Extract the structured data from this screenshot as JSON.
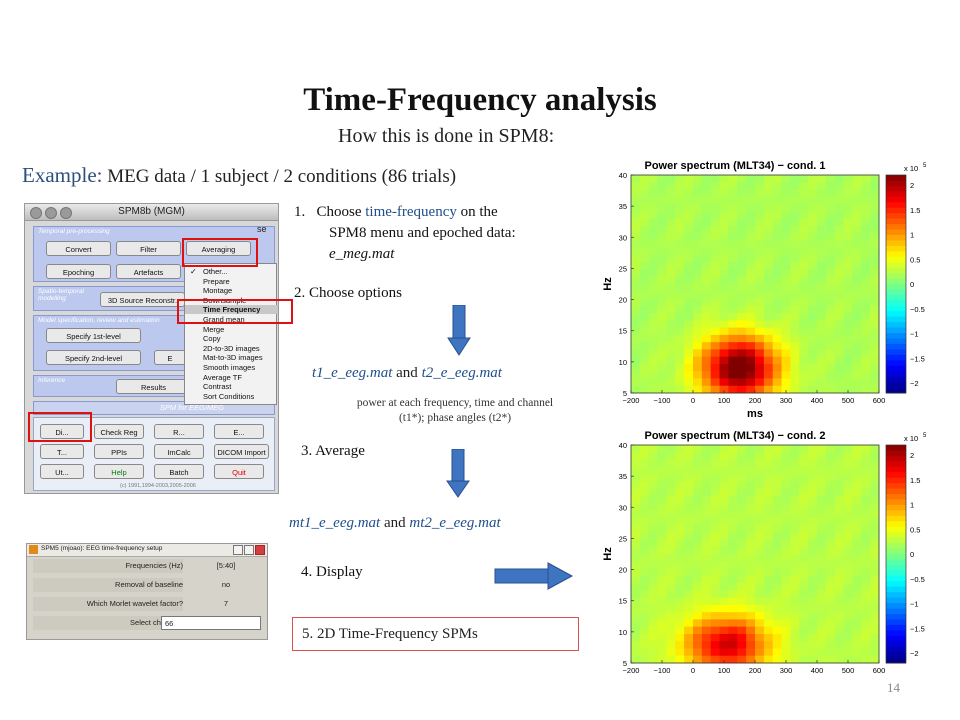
{
  "slide": {
    "title": "Time-Frequency analysis",
    "subtitle": "How this is done in SPM8:",
    "example_label": "Example:",
    "example_text": "MEG data / 1 subject / 2 conditions (86 trials)",
    "page_number": "14"
  },
  "steps": {
    "s1_num": "1.",
    "s1_a": "Choose ",
    "s1_highlight": "time-frequency",
    "s1_b": " on the",
    "s1_line2": "SPM8 menu and epoched data:",
    "s1_file": "e_meg.mat",
    "s2": "2.  Choose options",
    "outputs1_f1": "t1_e_eeg.mat",
    "outputs1_and": " and ",
    "outputs1_f2": "t2_e_eeg.mat",
    "note_line1": "power at each frequency, time and channel",
    "note_line2": "(t1*); phase angles (t2*)",
    "s3": "3.    Average",
    "outputs2_f1": "mt1_e_eeg.mat",
    "outputs2_and": " and ",
    "outputs2_f2": "mt2_e_eeg.mat",
    "s4": "4.    Display",
    "s5": "5. 2D Time-Frequency SPMs"
  },
  "spm_window": {
    "title": "SPM8b (MGM)",
    "panel1_head": "Temporal pre-processing",
    "panel2_head": "Spatio-temporal modelling",
    "panel3_head": "Model specification, review and estimation",
    "panel4_head": "Inference",
    "footer_title": "SPM for EEG/MEG",
    "copyright": "(c) 1991,1994-2003,2005-2006",
    "buttons": {
      "convert": "Convert",
      "filter": "Filter",
      "averaging": "Averaging",
      "epoching": "Epoching",
      "artefacts": "Artefacts",
      "source": "3D Source Reconstr.",
      "spec1": "Specify 1st-level",
      "spec2": "Specify 2nd-level",
      "e_trunc": "E",
      "results": "Results",
      "di": "Di...",
      "checkreg": "Check Reg",
      "r": "R...",
      "e": "E...",
      "t": "T...",
      "ppis": "PPIs",
      "imcalc": "ImCalc",
      "dicom": "DICOM Import",
      "ut": "Ut...",
      "help": "Help",
      "batch": "Batch",
      "quit": "Quit",
      "se_trunc": "se"
    },
    "menu_items": [
      "Other...",
      "Prepare",
      "Montage",
      "Downsample",
      "Time Frequency",
      "Grand mean",
      "Merge",
      "Copy",
      "2D-to-3D images",
      "Mat-to-3D images",
      "Smooth images",
      "Average TF",
      "Contrast",
      "Sort Conditions"
    ],
    "menu_check": "✓",
    "menu_selected": "Time Frequency"
  },
  "tf_dialog": {
    "title": "SPM5 (mjoao): EEG time-frequency setup",
    "rows": [
      {
        "label": "Frequencies (Hz)",
        "value": "[5:40]"
      },
      {
        "label": "Removal of baseline",
        "value": "no"
      },
      {
        "label": "Which Morlet wavelet factor?",
        "value": "7"
      },
      {
        "label": "Select channels",
        "value": "66"
      }
    ]
  },
  "colors": {
    "accent_blue": "#1f4e8c",
    "arrow_blue": "#3f74c0",
    "highlight_red": "#e01010"
  },
  "chart_data": [
    {
      "type": "heatmap",
      "title": "Power spectrum (MLT34) − cond. 1",
      "xlabel": "ms",
      "ylabel": "Hz",
      "x_ticks": [
        "−200",
        "−100",
        "0",
        "100",
        "200",
        "300",
        "400",
        "500",
        "600"
      ],
      "y_ticks": [
        "5",
        "10",
        "15",
        "20",
        "25",
        "30",
        "35",
        "40"
      ],
      "xlim": [
        -200,
        600
      ],
      "ylim": [
        5,
        40
      ],
      "colorbar_ticks": [
        "2",
        "1.5",
        "1",
        "0.5",
        "0",
        "−0.5",
        "−1",
        "−1.5",
        "−2"
      ],
      "colorbar_exp": "x 10",
      "colorbar_exp_sup": "5",
      "blob": {
        "center_ms": 150,
        "center_hz": 9,
        "peak": 2.2,
        "spread_ms": 120,
        "spread_hz": 5
      },
      "baseline": 0.2
    },
    {
      "type": "heatmap",
      "title": "Power spectrum (MLT34) − cond. 2",
      "xlabel": "ms",
      "ylabel": "Hz",
      "x_ticks": [
        "−200",
        "−100",
        "0",
        "100",
        "200",
        "300",
        "400",
        "500",
        "600"
      ],
      "y_ticks": [
        "5",
        "10",
        "15",
        "20",
        "25",
        "30",
        "35",
        "40"
      ],
      "xlim": [
        -200,
        600
      ],
      "ylim": [
        5,
        40
      ],
      "colorbar_ticks": [
        "2",
        "1.5",
        "1",
        "0.5",
        "0",
        "−0.5",
        "−1",
        "−1.5",
        "−2"
      ],
      "colorbar_exp": "x 10",
      "colorbar_exp_sup": "5",
      "blob": {
        "center_ms": 110,
        "center_hz": 8,
        "peak": 1.6,
        "spread_ms": 130,
        "spread_hz": 4.5
      },
      "baseline": 0.25
    }
  ]
}
